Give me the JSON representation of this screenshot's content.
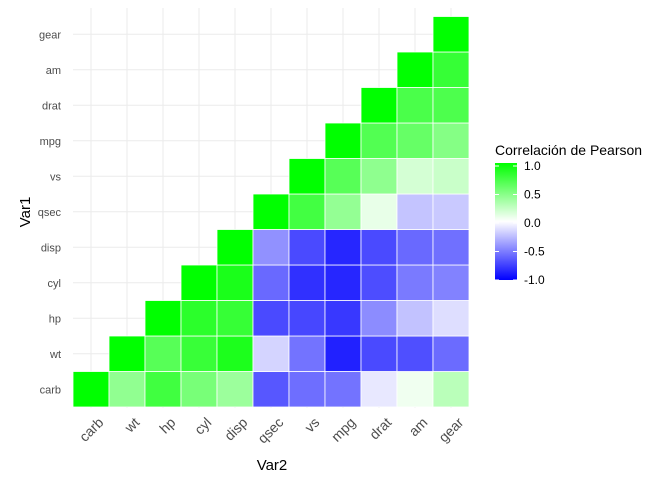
{
  "chart_data": {
    "type": "heatmap",
    "xlabel": "Var2",
    "ylabel": "Var1",
    "x_categories": [
      "carb",
      "wt",
      "hp",
      "cyl",
      "disp",
      "qsec",
      "vs",
      "mpg",
      "drat",
      "am",
      "gear"
    ],
    "y_categories": [
      "carb",
      "wt",
      "hp",
      "cyl",
      "disp",
      "qsec",
      "vs",
      "mpg",
      "drat",
      "am",
      "gear"
    ],
    "triangle": "upper",
    "values": [
      [
        1.0,
        0.43,
        0.75,
        0.53,
        0.39,
        -0.66,
        -0.57,
        -0.55,
        -0.09,
        0.06,
        0.27
      ],
      [
        0.43,
        1.0,
        0.66,
        0.78,
        0.89,
        -0.17,
        -0.55,
        -0.87,
        -0.71,
        -0.69,
        -0.58
      ],
      [
        0.75,
        0.66,
        1.0,
        0.83,
        0.79,
        -0.71,
        -0.72,
        -0.78,
        -0.45,
        -0.24,
        -0.13
      ],
      [
        0.53,
        0.78,
        0.83,
        1.0,
        0.9,
        -0.59,
        -0.81,
        -0.85,
        -0.7,
        -0.52,
        -0.49
      ],
      [
        0.39,
        0.89,
        0.79,
        0.9,
        1.0,
        -0.43,
        -0.71,
        -0.85,
        -0.71,
        -0.59,
        -0.56
      ],
      [
        -0.66,
        -0.17,
        -0.71,
        -0.59,
        -0.43,
        1.0,
        0.74,
        0.42,
        0.09,
        -0.23,
        -0.21
      ],
      [
        -0.57,
        -0.55,
        -0.72,
        -0.81,
        -0.71,
        0.74,
        1.0,
        0.66,
        0.44,
        0.17,
        0.21
      ],
      [
        -0.55,
        -0.87,
        -0.78,
        -0.85,
        -0.85,
        0.42,
        0.66,
        1.0,
        0.68,
        0.6,
        0.48
      ],
      [
        -0.09,
        -0.71,
        -0.45,
        -0.7,
        -0.71,
        0.09,
        0.44,
        0.68,
        1.0,
        0.71,
        0.7
      ],
      [
        0.06,
        -0.69,
        -0.24,
        -0.52,
        -0.59,
        -0.23,
        0.17,
        0.6,
        0.71,
        1.0,
        0.79
      ],
      [
        0.27,
        -0.58,
        -0.13,
        -0.49,
        -0.56,
        -0.21,
        0.21,
        0.48,
        0.7,
        0.79,
        1.0
      ]
    ],
    "value_range": [
      -1,
      1
    ],
    "colors": {
      "low": "#0000ff",
      "mid": "#ffffff",
      "high": "#00ff00",
      "tile_border": "#ffffff",
      "grid": "#ebebeb",
      "text": "#4d4d4d",
      "title_text": "#000000"
    },
    "legend": {
      "title": "Correlación de Pearson",
      "breaks": [
        1.0,
        0.5,
        0.0,
        -0.5,
        -1.0
      ],
      "labels": [
        "1.0",
        "0.5",
        "0.0",
        "-0.5",
        "-1.0"
      ],
      "placement": "right"
    },
    "grid": true
  }
}
